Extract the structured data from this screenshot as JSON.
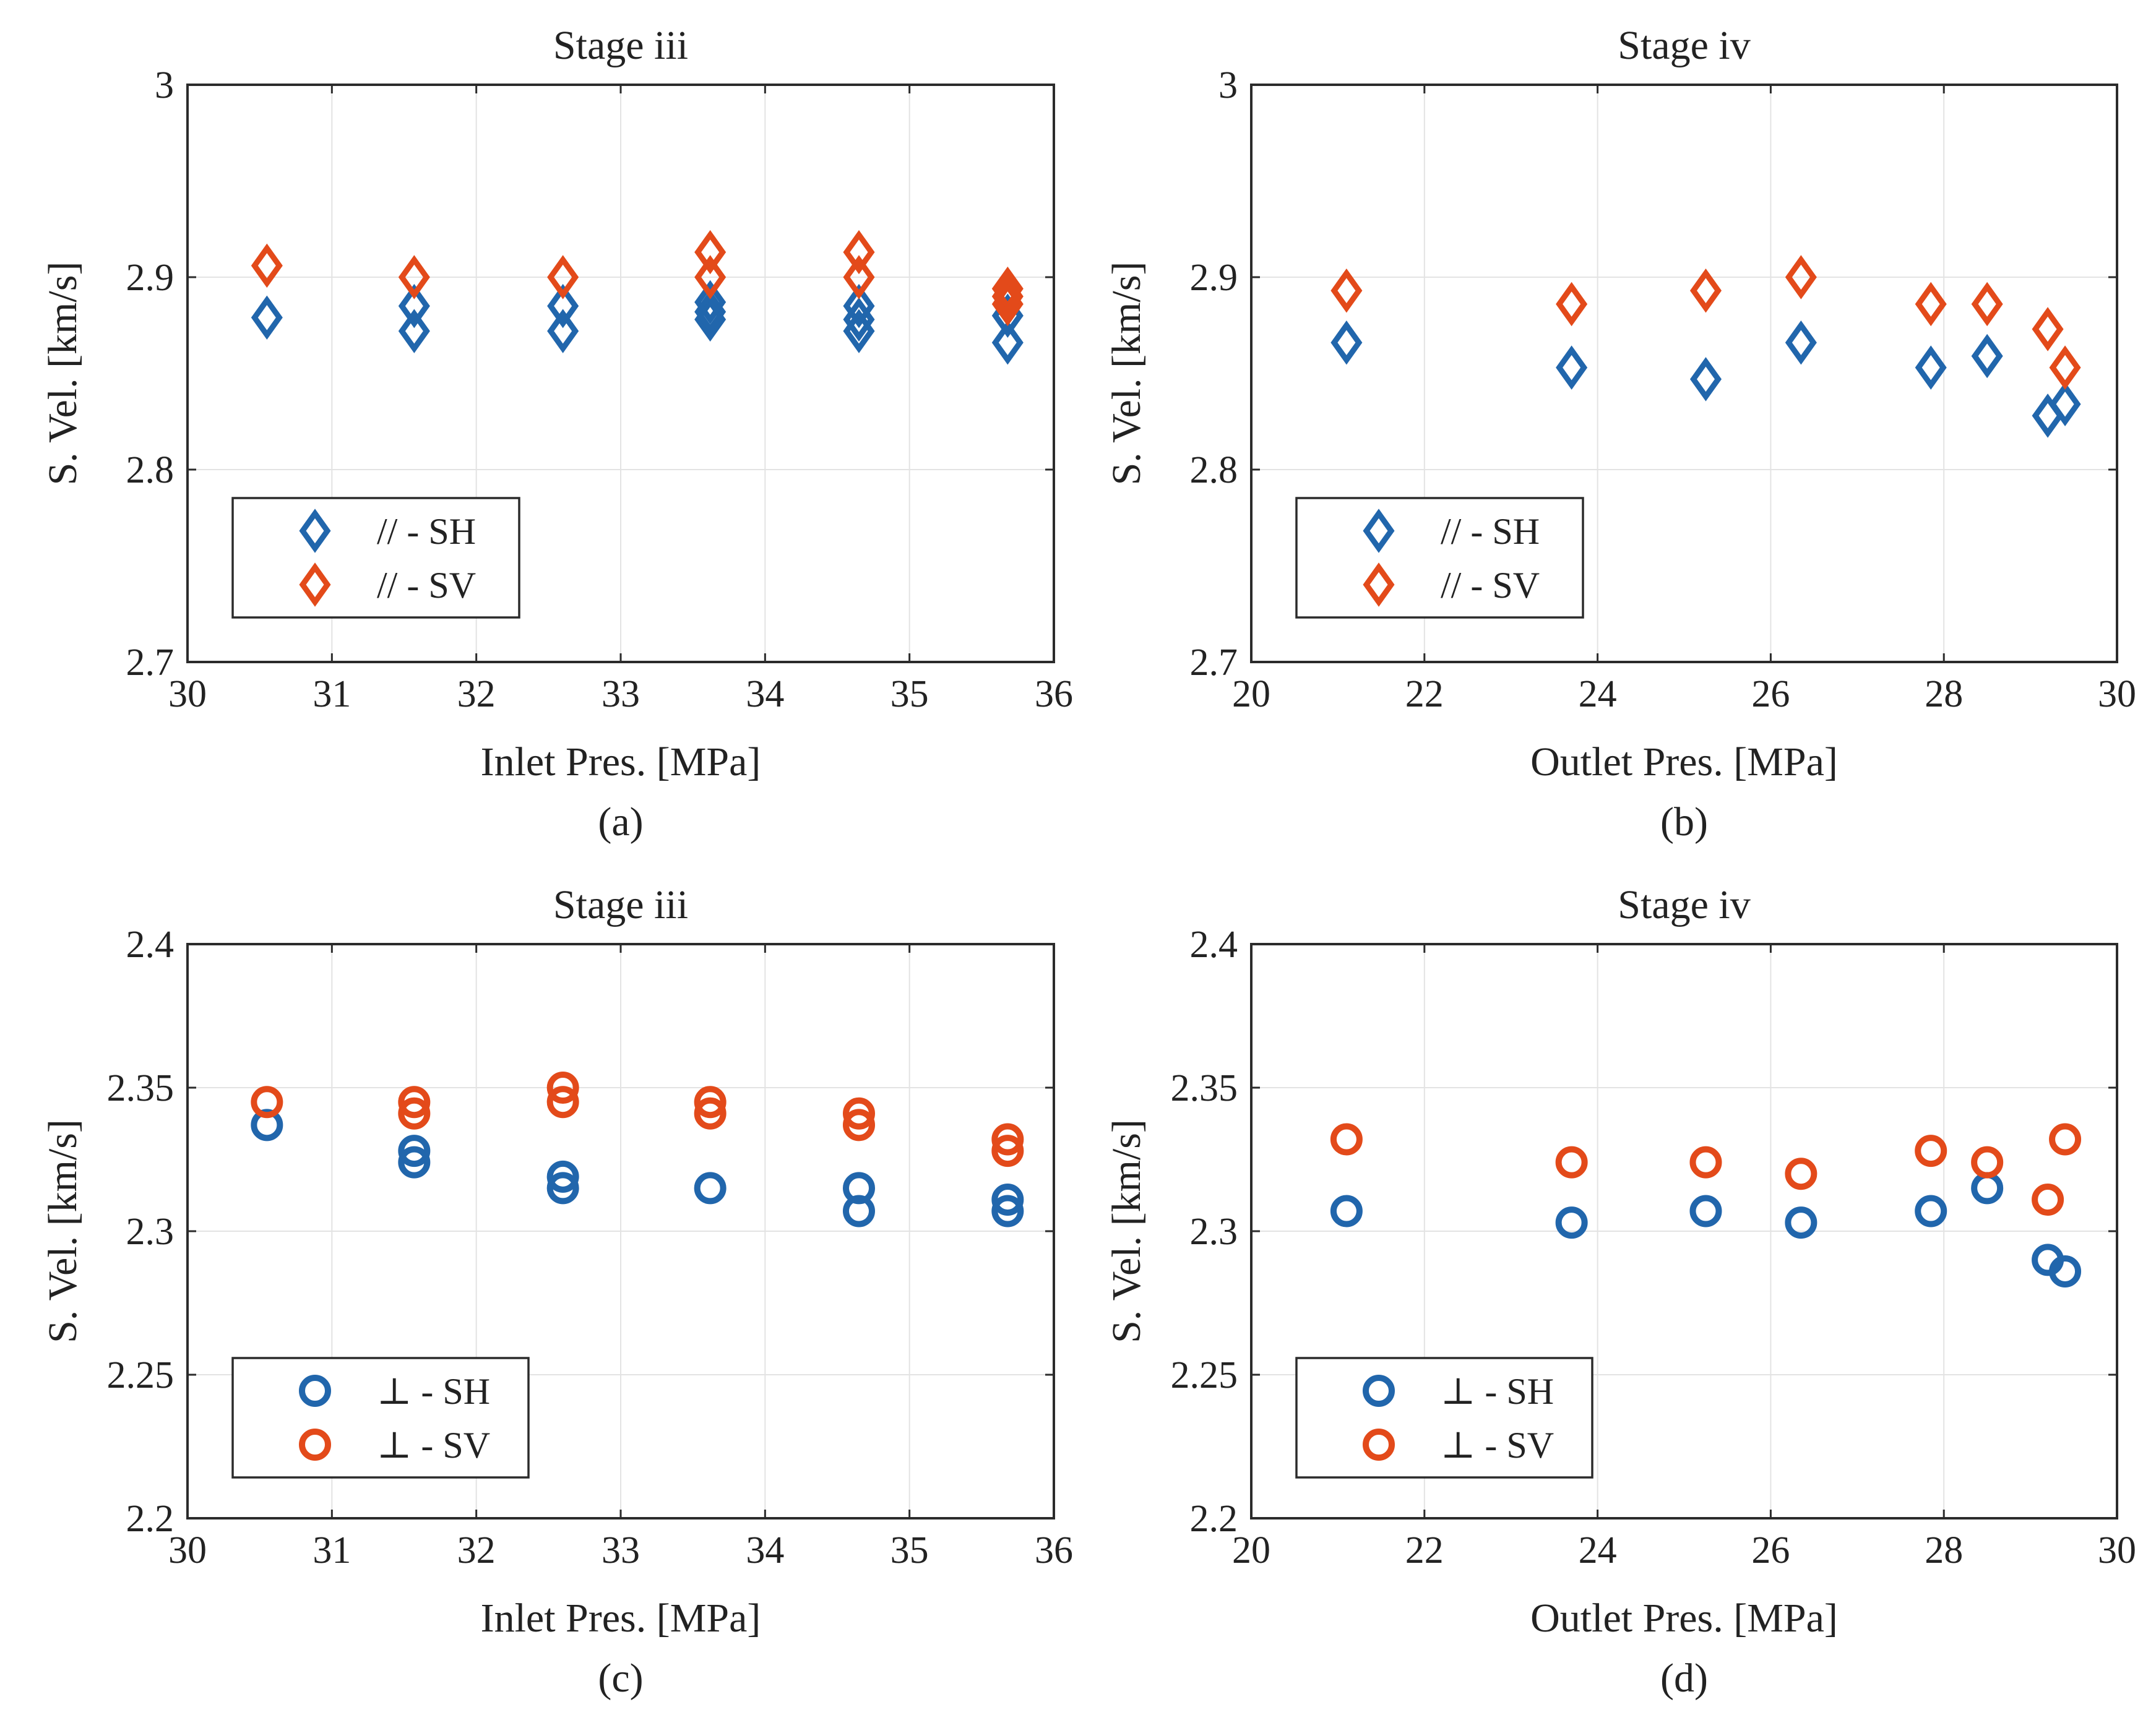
{
  "colors": {
    "SH": "#2166ac",
    "SV": "#e34a1a"
  },
  "chart_data": [
    {
      "type": "scatter",
      "title": "Stage iii",
      "caption": "(a)",
      "xlabel": "Inlet Pres. [MPa]",
      "ylabel": "S. Vel. [km/s]",
      "xlim": [
        30,
        36
      ],
      "ylim": [
        2.7,
        3.0
      ],
      "xticks": [
        30,
        31,
        32,
        33,
        34,
        35,
        36
      ],
      "xtick_labels": [
        "30",
        "31",
        "32",
        "33",
        "34",
        "35",
        "36"
      ],
      "yticks": [
        2.7,
        2.8,
        2.9,
        3.0
      ],
      "ytick_labels": [
        "2.7",
        "2.8",
        "2.9",
        "3"
      ],
      "grid": true,
      "legend_position": "bottom-left",
      "marker": "diamond",
      "series": [
        {
          "name": "// - SH",
          "color_key": "SH",
          "x": [
            30.55,
            31.57,
            31.57,
            32.6,
            32.6,
            33.62,
            33.62,
            33.62,
            34.65,
            34.65,
            34.65,
            35.68,
            35.68
          ],
          "y": [
            2.879,
            2.872,
            2.885,
            2.872,
            2.885,
            2.878,
            2.882,
            2.887,
            2.872,
            2.878,
            2.885,
            2.866,
            2.88
          ]
        },
        {
          "name": "// - SV",
          "color_key": "SV",
          "x": [
            30.55,
            31.57,
            32.6,
            33.62,
            33.62,
            34.65,
            34.65,
            35.68,
            35.68,
            35.68
          ],
          "y": [
            2.906,
            2.9,
            2.9,
            2.913,
            2.9,
            2.913,
            2.9,
            2.886,
            2.89,
            2.894
          ]
        }
      ]
    },
    {
      "type": "scatter",
      "title": "Stage iv",
      "caption": "(b)",
      "xlabel": "Outlet Pres. [MPa]",
      "ylabel": "S. Vel. [km/s]",
      "xlim": [
        20,
        30
      ],
      "ylim": [
        2.7,
        3.0
      ],
      "xticks": [
        20,
        22,
        24,
        26,
        28,
        30
      ],
      "xtick_labels": [
        "20",
        "22",
        "24",
        "26",
        "28",
        "30"
      ],
      "yticks": [
        2.7,
        2.8,
        2.9,
        3.0
      ],
      "ytick_labels": [
        "2.7",
        "2.8",
        "2.9",
        "3"
      ],
      "grid": true,
      "legend_position": "bottom-left",
      "marker": "diamond",
      "series": [
        {
          "name": "// - SH",
          "color_key": "SH",
          "x": [
            21.1,
            23.7,
            25.25,
            26.35,
            27.85,
            28.5,
            29.2,
            29.4
          ],
          "y": [
            2.866,
            2.853,
            2.847,
            2.866,
            2.853,
            2.859,
            2.828,
            2.834
          ]
        },
        {
          "name": "// - SV",
          "color_key": "SV",
          "x": [
            21.1,
            23.7,
            25.25,
            26.35,
            27.85,
            28.5,
            29.2,
            29.4
          ],
          "y": [
            2.893,
            2.886,
            2.893,
            2.9,
            2.886,
            2.886,
            2.873,
            2.853
          ]
        }
      ]
    },
    {
      "type": "scatter",
      "title": "Stage iii",
      "caption": "(c)",
      "xlabel": "Inlet Pres. [MPa]",
      "ylabel": "S. Vel. [km/s]",
      "xlim": [
        30,
        36
      ],
      "ylim": [
        2.2,
        2.4
      ],
      "xticks": [
        30,
        31,
        32,
        33,
        34,
        35,
        36
      ],
      "xtick_labels": [
        "30",
        "31",
        "32",
        "33",
        "34",
        "35",
        "36"
      ],
      "yticks": [
        2.2,
        2.25,
        2.3,
        2.35,
        2.4
      ],
      "ytick_labels": [
        "2.2",
        "2.25",
        "2.3",
        "2.35",
        "2.4"
      ],
      "grid": true,
      "legend_position": "bottom-left",
      "marker": "circle",
      "series": [
        {
          "name": "⊥ - SH",
          "color_key": "SH",
          "x": [
            30.55,
            31.57,
            31.57,
            32.6,
            32.6,
            33.62,
            34.65,
            34.65,
            35.68,
            35.68
          ],
          "y": [
            2.337,
            2.324,
            2.328,
            2.315,
            2.319,
            2.315,
            2.307,
            2.315,
            2.307,
            2.311
          ]
        },
        {
          "name": "⊥ - SV",
          "color_key": "SV",
          "x": [
            30.55,
            31.57,
            31.57,
            32.6,
            32.6,
            33.62,
            33.62,
            34.65,
            34.65,
            35.68,
            35.68
          ],
          "y": [
            2.345,
            2.341,
            2.345,
            2.345,
            2.35,
            2.341,
            2.345,
            2.337,
            2.341,
            2.328,
            2.332
          ]
        }
      ]
    },
    {
      "type": "scatter",
      "title": "Stage iv",
      "caption": "(d)",
      "xlabel": "Outlet Pres. [MPa]",
      "ylabel": "S. Vel. [km/s]",
      "xlim": [
        20,
        30
      ],
      "ylim": [
        2.2,
        2.4
      ],
      "xticks": [
        20,
        22,
        24,
        26,
        28,
        30
      ],
      "xtick_labels": [
        "20",
        "22",
        "24",
        "26",
        "28",
        "30"
      ],
      "yticks": [
        2.2,
        2.25,
        2.3,
        2.35,
        2.4
      ],
      "ytick_labels": [
        "2.2",
        "2.25",
        "2.3",
        "2.35",
        "2.4"
      ],
      "grid": true,
      "legend_position": "bottom-left",
      "marker": "circle",
      "series": [
        {
          "name": "⊥ - SH",
          "color_key": "SH",
          "x": [
            21.1,
            23.7,
            25.25,
            26.35,
            27.85,
            28.5,
            29.2,
            29.4
          ],
          "y": [
            2.307,
            2.303,
            2.307,
            2.303,
            2.307,
            2.315,
            2.29,
            2.286
          ]
        },
        {
          "name": "⊥ - SV",
          "color_key": "SV",
          "x": [
            21.1,
            23.7,
            25.25,
            26.35,
            27.85,
            28.5,
            29.2,
            29.4
          ],
          "y": [
            2.332,
            2.324,
            2.324,
            2.32,
            2.328,
            2.324,
            2.311,
            2.332
          ]
        }
      ]
    }
  ]
}
